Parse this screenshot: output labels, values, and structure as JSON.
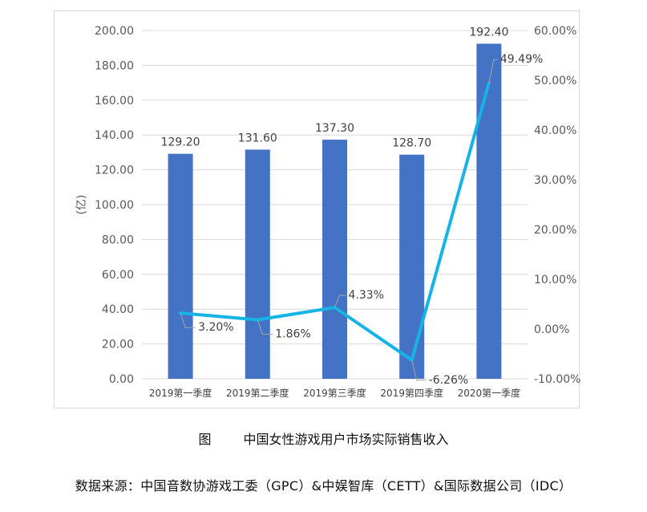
{
  "chart_data": {
    "type": "bar+line",
    "categories": [
      "2019第一季度",
      "2019第二季度",
      "2019第三季度",
      "2019第四季度",
      "2020第一季度"
    ],
    "series": [
      {
        "name": "",
        "type": "bar",
        "axis": "left",
        "color": "#4472c4",
        "values": [
          129.2,
          131.6,
          137.3,
          128.7,
          192.4
        ],
        "labels": [
          "129.20",
          "131.60",
          "137.30",
          "128.70",
          "192.40"
        ]
      },
      {
        "name": "",
        "type": "line",
        "axis": "right",
        "color": "#16b3e6",
        "values": [
          3.2,
          1.86,
          4.33,
          -6.26,
          49.49
        ],
        "labels": [
          "3.20%",
          "1.86%",
          "4.33%",
          "-6.26%",
          "49.49%"
        ]
      }
    ],
    "ylabel": "(亿)",
    "ylim": [
      0,
      200
    ],
    "y_ticks": [
      "0.00",
      "20.00",
      "40.00",
      "60.00",
      "80.00",
      "100.00",
      "120.00",
      "140.00",
      "160.00",
      "180.00",
      "200.00"
    ],
    "y2lim": [
      -10,
      60
    ],
    "y2_ticks": [
      "-10.00%",
      "0.00%",
      "10.00%",
      "20.00%",
      "30.00%",
      "40.00%",
      "50.00%",
      "60.00%"
    ],
    "grid": true,
    "legend": "none"
  },
  "caption": {
    "figure_label": "图",
    "title": "中国女性游戏用户市场实际销售收入"
  },
  "source": "数据来源：中国音数协游戏工委（GPC）&中娱智库（CETT）&国际数据公司（IDC）"
}
